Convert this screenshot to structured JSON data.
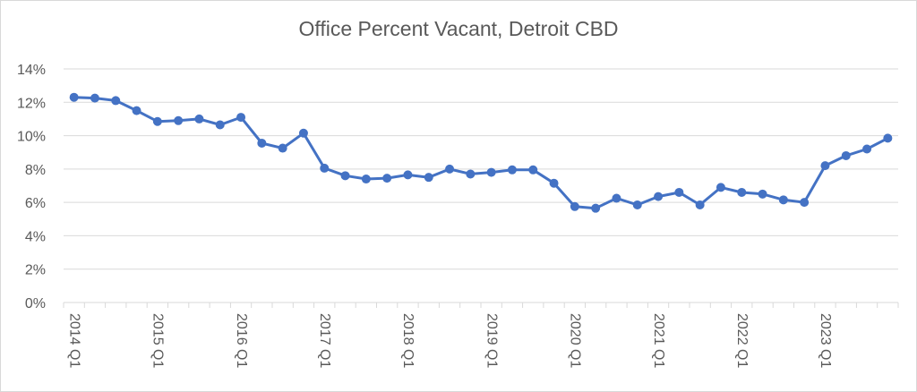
{
  "chart_data": {
    "type": "line",
    "title": "Office Percent Vacant, Detroit CBD",
    "xlabel": "",
    "ylabel": "",
    "ylim": [
      0,
      14
    ],
    "y_ticks": [
      "0%",
      "2%",
      "4%",
      "6%",
      "8%",
      "10%",
      "12%",
      "14%"
    ],
    "y_tick_values": [
      0,
      2,
      4,
      6,
      8,
      10,
      12,
      14
    ],
    "grid": true,
    "legend": "none",
    "colors": {
      "line": "#4472c4",
      "grid": "#d9d9d9",
      "text": "#595959"
    },
    "x_tick_labels": [
      {
        "index": 0,
        "label": "2014 Q1"
      },
      {
        "index": 4,
        "label": "2015 Q1"
      },
      {
        "index": 8,
        "label": "2016 Q1"
      },
      {
        "index": 12,
        "label": "2017 Q1"
      },
      {
        "index": 16,
        "label": "2018 Q1"
      },
      {
        "index": 20,
        "label": "2019 Q1"
      },
      {
        "index": 24,
        "label": "2020 Q1"
      },
      {
        "index": 28,
        "label": "2021 Q1"
      },
      {
        "index": 32,
        "label": "2022 Q1"
      },
      {
        "index": 36,
        "label": "2023 Q1"
      }
    ],
    "series": [
      {
        "values": [
          12.3,
          12.25,
          12.1,
          11.5,
          10.85,
          10.9,
          11.0,
          10.65,
          11.1,
          9.55,
          9.25,
          10.15,
          8.05,
          7.6,
          7.4,
          7.45,
          7.65,
          7.5,
          8.0,
          7.7,
          7.8,
          7.95,
          7.95,
          7.15,
          5.75,
          5.65,
          6.25,
          5.85,
          6.35,
          6.6,
          5.85,
          6.9,
          6.6,
          6.5,
          6.15,
          6.0,
          8.2,
          8.8,
          9.2,
          9.85
        ]
      }
    ]
  }
}
